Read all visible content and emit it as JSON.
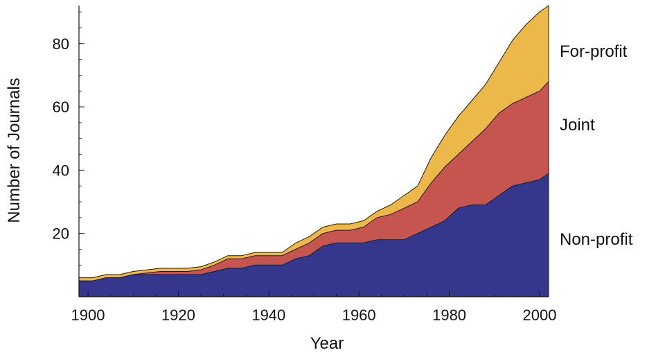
{
  "chart_data": {
    "type": "area",
    "stacked": true,
    "title": "",
    "xlabel": "Year",
    "ylabel": "Number of Journals",
    "xlim": [
      1898,
      2002
    ],
    "ylim": [
      0,
      92
    ],
    "xticks": [
      1900,
      1920,
      1940,
      1960,
      1980,
      2000
    ],
    "yticks": [
      20,
      40,
      60,
      80
    ],
    "x": [
      1898,
      1901,
      1904,
      1907,
      1910,
      1913,
      1916,
      1919,
      1922,
      1925,
      1928,
      1931,
      1934,
      1937,
      1940,
      1943,
      1946,
      1949,
      1952,
      1955,
      1958,
      1961,
      1964,
      1967,
      1970,
      1973,
      1976,
      1979,
      1982,
      1985,
      1988,
      1991,
      1994,
      1997,
      2000,
      2002
    ],
    "series": [
      {
        "name": "Non-profit",
        "color": "#35378D",
        "values": [
          5,
          5,
          6,
          6,
          7,
          7,
          7,
          7,
          7,
          7,
          8,
          9,
          9,
          10,
          10,
          10,
          12,
          13,
          16,
          17,
          17,
          17,
          18,
          18,
          18,
          20,
          22,
          24,
          28,
          29,
          29,
          32,
          35,
          36,
          37,
          39
        ]
      },
      {
        "name": "Joint",
        "color": "#C65550",
        "values": [
          0,
          0,
          0,
          0,
          0,
          0.5,
          1,
          1,
          1,
          1.5,
          2,
          3,
          3,
          3,
          3,
          3,
          3,
          4,
          4,
          4,
          4,
          5,
          7,
          8,
          10,
          10,
          14,
          17,
          17,
          20,
          24,
          26,
          26,
          27,
          28,
          29
        ]
      },
      {
        "name": "For-profit",
        "color": "#EDB84A",
        "values": [
          1,
          1,
          1,
          1,
          1,
          1,
          1,
          1,
          1,
          1,
          1,
          1,
          1,
          1,
          1,
          1,
          2,
          2,
          2,
          2,
          2,
          2,
          2,
          3,
          4,
          5,
          8,
          10,
          12,
          13,
          14,
          16,
          20,
          23,
          25,
          24
        ]
      }
    ],
    "legend": [
      "For-profit",
      "Joint",
      "Non-profit"
    ],
    "legend_placement": "right, aligned with each band"
  }
}
